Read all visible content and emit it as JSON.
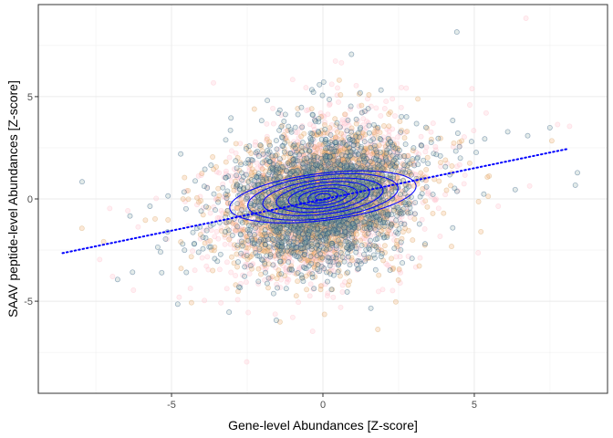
{
  "chart_data": {
    "type": "scatter",
    "title": "",
    "xlabel": "Gene-level Abundances [Z-score]",
    "ylabel": "SAAV peptide-level Abundances [Z-score]",
    "xlim": [
      -9.4,
      9.4
    ],
    "ylim": [
      -9.5,
      9.5
    ],
    "x_ticks": [
      -5,
      0,
      5
    ],
    "y_ticks": [
      -5,
      0,
      5
    ],
    "x_tick_labels": [
      "-5",
      "0",
      "5"
    ],
    "y_tick_labels": [
      "-5",
      "0",
      "5"
    ],
    "grid": true,
    "legend": "none",
    "n_points_approx": 6000,
    "point_clouds": [
      {
        "color": "#ffc0cb",
        "fill": "#ffc0cb",
        "spread_x": 1.55,
        "spread_y": 1.7,
        "weight": 0.3
      },
      {
        "color": "#d2a96b",
        "fill": "#f4a460",
        "spread_x": 1.3,
        "spread_y": 1.45,
        "weight": 0.35
      },
      {
        "color": "#1f4e79",
        "fill": "#8fb0a8",
        "spread_x": 1.4,
        "spread_y": 1.55,
        "weight": 0.35
      }
    ],
    "trend_line": {
      "style": "dotted",
      "color": "#0000ff",
      "x": [
        -8.6,
        8.1
      ],
      "y": [
        -2.65,
        2.45
      ]
    },
    "density_contours": {
      "color": "#0000ff",
      "center": [
        0.0,
        0.1
      ],
      "levels": [
        {
          "rx": 3.1,
          "ry": 1.15
        },
        {
          "rx": 2.5,
          "ry": 1.05
        },
        {
          "rx": 2.0,
          "ry": 0.85
        },
        {
          "rx": 1.55,
          "ry": 0.7
        },
        {
          "rx": 1.15,
          "ry": 0.55
        },
        {
          "rx": 0.8,
          "ry": 0.4
        },
        {
          "rx": 0.5,
          "ry": 0.28
        },
        {
          "rx": 0.25,
          "ry": 0.15
        }
      ]
    }
  }
}
